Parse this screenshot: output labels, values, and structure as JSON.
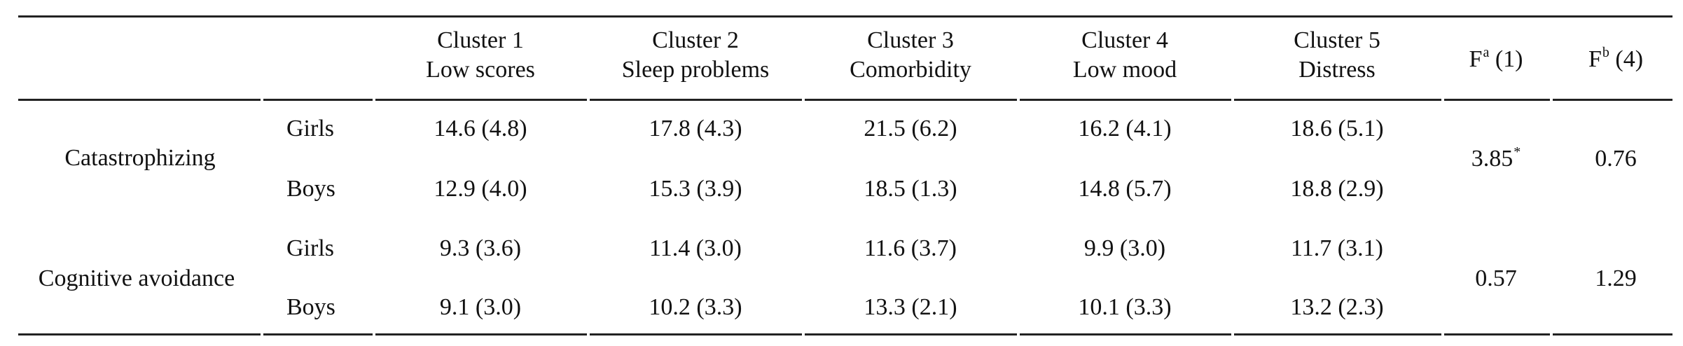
{
  "table": {
    "header": {
      "clusters": [
        {
          "number": "Cluster 1",
          "name": "Low scores"
        },
        {
          "number": "Cluster 2",
          "name": "Sleep problems"
        },
        {
          "number": "Cluster 3",
          "name": "Comorbidity"
        },
        {
          "number": "Cluster 4",
          "name": "Low mood"
        },
        {
          "number": "Cluster 5",
          "name": "Distress"
        }
      ],
      "fa": {
        "letter": "F",
        "sup": "a",
        "df": " (1)"
      },
      "fb": {
        "letter": "F",
        "sup": "b",
        "df": " (4)"
      }
    },
    "rows": [
      {
        "measure": "Catastrophizing",
        "groups": [
          {
            "label": "Girls",
            "values": [
              "14.6 (4.8)",
              "17.8 (4.3)",
              "21.5 (6.2)",
              "16.2 (4.1)",
              "18.6 (5.1)"
            ]
          },
          {
            "label": "Boys",
            "values": [
              "12.9 (4.0)",
              "15.3 (3.9)",
              "18.5 (1.3)",
              "14.8 (5.7)",
              "18.8 (2.9)"
            ]
          }
        ],
        "fa": {
          "value": "3.85",
          "sup": "*"
        },
        "fb": {
          "value": "0.76"
        }
      },
      {
        "measure": "Cognitive avoidance",
        "groups": [
          {
            "label": "Girls",
            "values": [
              "9.3 (3.6)",
              "11.4 (3.0)",
              "11.6 (3.7)",
              "9.9 (3.0)",
              "11.7 (3.1)"
            ]
          },
          {
            "label": "Boys",
            "values": [
              "9.1 (3.0)",
              "10.2 (3.3)",
              "13.3 (2.1)",
              "10.1 (3.3)",
              "13.2 (2.3)"
            ]
          }
        ],
        "fa": {
          "value": "0.57"
        },
        "fb": {
          "value": "1.29"
        }
      }
    ]
  }
}
